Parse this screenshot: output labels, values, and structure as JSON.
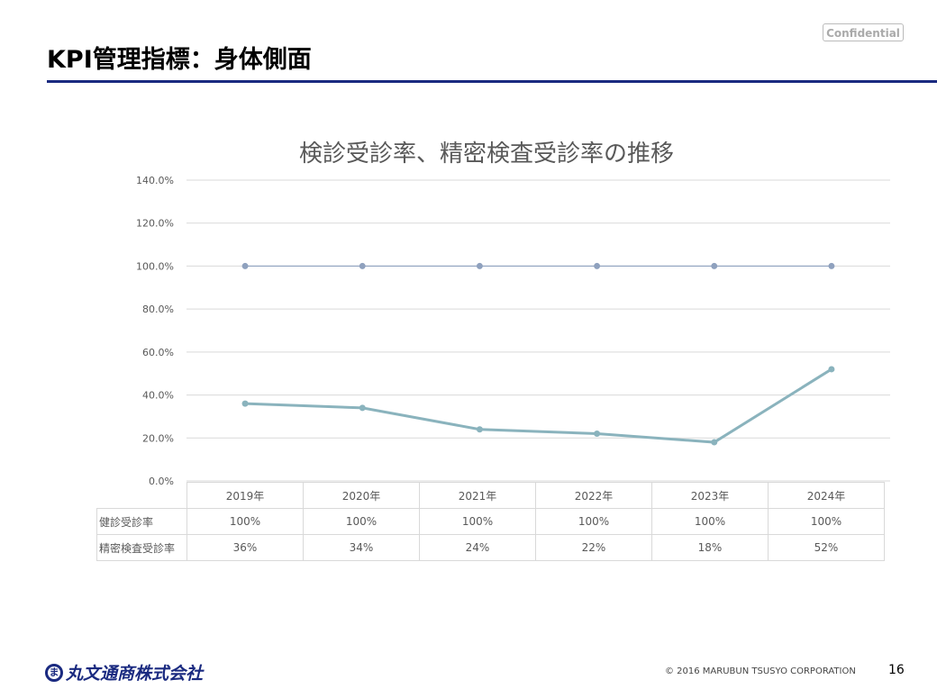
{
  "header": {
    "confidential": "Confidential",
    "title": "KPI管理指標：身体側面"
  },
  "chart_data": {
    "type": "line",
    "title": "検診受診率、精密検査受診率の推移",
    "categories": [
      "2019年",
      "2020年",
      "2021年",
      "2022年",
      "2023年",
      "2024年"
    ],
    "yticks": [
      "0.0%",
      "20.0%",
      "40.0%",
      "60.0%",
      "80.0%",
      "100.0%",
      "120.0%",
      "140.0%"
    ],
    "ylim": [
      0,
      140
    ],
    "grid": true,
    "legend": "data-table-below",
    "series": [
      {
        "name": "健診受診率",
        "values": [
          100,
          100,
          100,
          100,
          100,
          100
        ],
        "labels": [
          "100%",
          "100%",
          "100%",
          "100%",
          "100%",
          "100%"
        ],
        "color": "#8fa1be"
      },
      {
        "name": "精密検査受診率",
        "values": [
          36,
          34,
          24,
          22,
          18,
          52
        ],
        "labels": [
          "36%",
          "34%",
          "24%",
          "22%",
          "18%",
          "52%"
        ],
        "color": "#8ab3bd"
      }
    ]
  },
  "footer": {
    "company": "丸文通商株式会社",
    "logo_mark": "ま",
    "copyright": "© 2016 MARUBUN TSUSYO CORPORATION",
    "page": "16"
  }
}
